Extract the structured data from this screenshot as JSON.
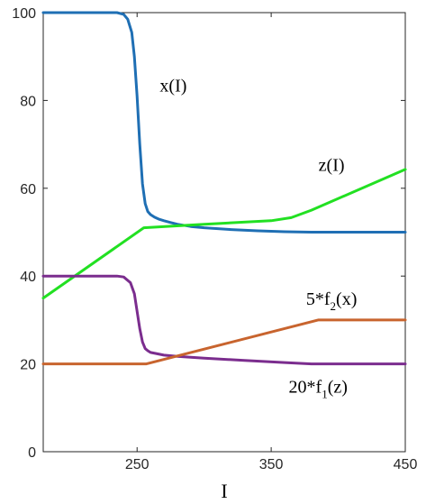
{
  "chart_data": {
    "type": "line",
    "xlabel": "I",
    "ylabel": "",
    "xlim": [
      180,
      450
    ],
    "ylim": [
      0,
      100
    ],
    "x_ticks": [
      250,
      350,
      450
    ],
    "y_ticks": [
      0,
      20,
      40,
      60,
      80,
      100
    ],
    "grid": false,
    "legend": "none",
    "series": [
      {
        "color": "#1f6fb4",
        "x": [
          180,
          200,
          220,
          235,
          240,
          243,
          246,
          248,
          250,
          252,
          254,
          256,
          258,
          260,
          263,
          266,
          270,
          275,
          280,
          290,
          300,
          320,
          340,
          360,
          380,
          400,
          420,
          450
        ],
        "y": [
          100,
          100,
          100,
          100,
          99.6,
          98.5,
          95.5,
          90,
          81,
          70,
          61,
          56.5,
          54.7,
          54,
          53.4,
          53,
          52.6,
          52.2,
          51.8,
          51.3,
          51,
          50.6,
          50.3,
          50.1,
          50,
          50,
          50,
          50
        ]
      },
      {
        "color": "#22e022",
        "x": [
          180,
          255,
          300,
          350,
          365,
          380,
          450
        ],
        "y": [
          35,
          51,
          51.8,
          52.6,
          53.3,
          55,
          64.3
        ]
      },
      {
        "color": "#7b2d8e",
        "x": [
          180,
          220,
          235,
          240,
          245,
          248,
          250,
          252,
          254,
          256,
          258,
          260,
          265,
          270,
          280,
          300,
          330,
          360,
          380,
          400,
          450
        ],
        "y": [
          40,
          40,
          40,
          39.8,
          38.5,
          36,
          32,
          28,
          25,
          23.5,
          23,
          22.6,
          22.3,
          22,
          21.7,
          21.3,
          20.8,
          20.3,
          20,
          20,
          20
        ]
      },
      {
        "color": "#c8642e",
        "x": [
          180,
          257,
          385,
          450
        ],
        "y": [
          20,
          20,
          30,
          30
        ]
      }
    ],
    "annotations": [
      {
        "base": "x(I)",
        "sub": "",
        "tail": "",
        "x": 277,
        "y": 82
      },
      {
        "base": "z(I)",
        "sub": "",
        "tail": "",
        "x": 395,
        "y": 64
      },
      {
        "base": "5*f",
        "sub": "2",
        "tail": "(x)",
        "x": 395,
        "y": 33.5
      },
      {
        "base": "20*f",
        "sub": "1",
        "tail": "(z)",
        "x": 385,
        "y": 13.5
      }
    ]
  }
}
